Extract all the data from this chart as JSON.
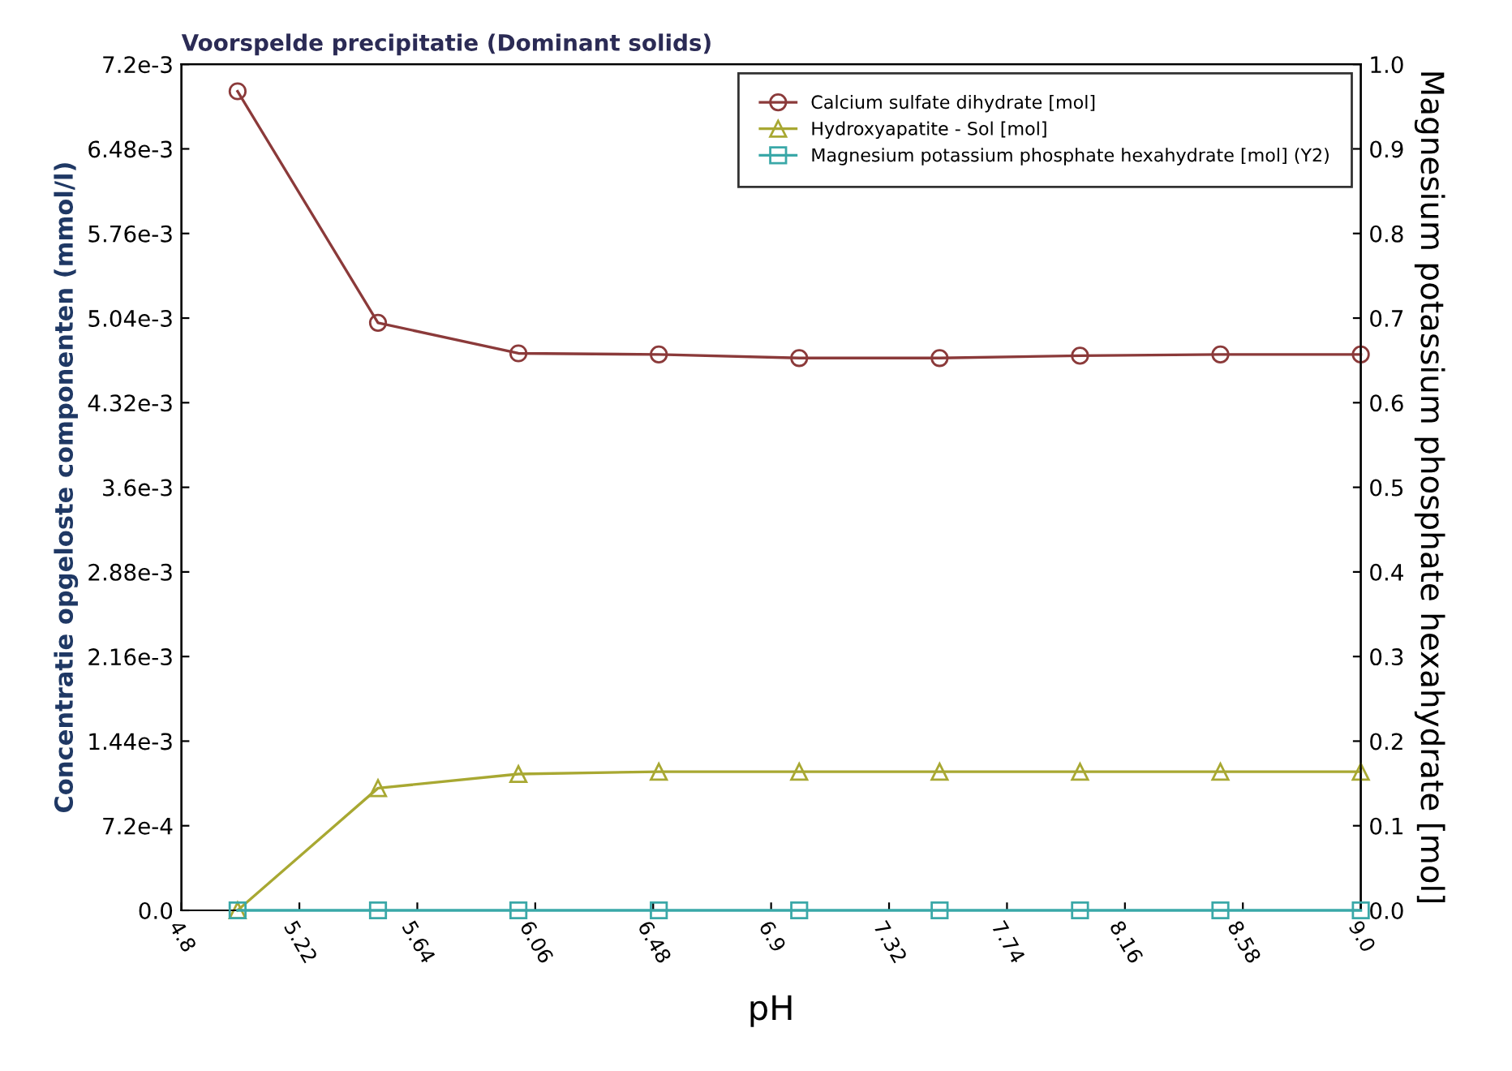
{
  "chart_data": {
    "type": "line",
    "title": "Voorspelde precipitatie (Dominant solids)",
    "xlabel": "pH",
    "ylabel": "Concentratie opgeloste componenten (mmol/l)",
    "y2label": "Magnesium potassium phosphate hexahydrate [mol]",
    "x": [
      5.0,
      5.5,
      6.0,
      6.5,
      7.0,
      7.5,
      8.0,
      8.5,
      9.0
    ],
    "series": [
      {
        "name": "Calcium sulfate dihydrate [mol]",
        "color": "#8b3a3a",
        "marker": "circle",
        "values": [
          0.00697,
          0.005,
          0.00474,
          0.00473,
          0.0047,
          0.0047,
          0.00472,
          0.00473,
          0.00473
        ]
      },
      {
        "name": "Hydroxyapatite - Sol [mol]",
        "color": "#a8a832",
        "marker": "triangle",
        "values": [
          0.0,
          0.00104,
          0.00116,
          0.00118,
          0.00118,
          0.00118,
          0.00118,
          0.00118,
          0.00118
        ]
      },
      {
        "name": "Magnesium potassium phosphate hexahydrate [mol] (Y2)",
        "color": "#3aa8a8",
        "marker": "square",
        "axis": "y2",
        "values": [
          0.0,
          0.0,
          0.0,
          0.0,
          0.0,
          0.0,
          0.0,
          0.0,
          0.0
        ]
      }
    ],
    "xlim": [
      4.8,
      9.0
    ],
    "xticks": [
      4.8,
      5.22,
      5.64,
      6.06,
      6.48,
      6.9,
      7.32,
      7.74,
      8.16,
      8.58,
      {
        "value": 9.0,
        "label": "9.0"
      }
    ],
    "ylim": [
      0,
      0.0072
    ],
    "yticks": [
      {
        "value": 0,
        "label": "0.0"
      },
      {
        "value": 0.00072,
        "label": "7.2e-4"
      },
      {
        "value": 0.00144,
        "label": "1.44e-3"
      },
      {
        "value": 0.00216,
        "label": "2.16e-3"
      },
      {
        "value": 0.00288,
        "label": "2.88e-3"
      },
      {
        "value": 0.0036,
        "label": "3.6e-3"
      },
      {
        "value": 0.00432,
        "label": "4.32e-3"
      },
      {
        "value": 0.00504,
        "label": "5.04e-3"
      },
      {
        "value": 0.00576,
        "label": "5.76e-3"
      },
      {
        "value": 0.00648,
        "label": "6.48e-3"
      },
      {
        "value": 0.0072,
        "label": "7.2e-3"
      }
    ],
    "y2lim": [
      0,
      1.0
    ],
    "y2ticks": [
      {
        "value": 0,
        "label": "0.0"
      },
      0.1,
      0.2,
      0.3,
      0.4,
      0.5,
      0.6,
      0.7,
      0.8,
      0.9,
      {
        "value": 1.0,
        "label": "1.0"
      }
    ],
    "legend": "top right",
    "grid": false
  }
}
